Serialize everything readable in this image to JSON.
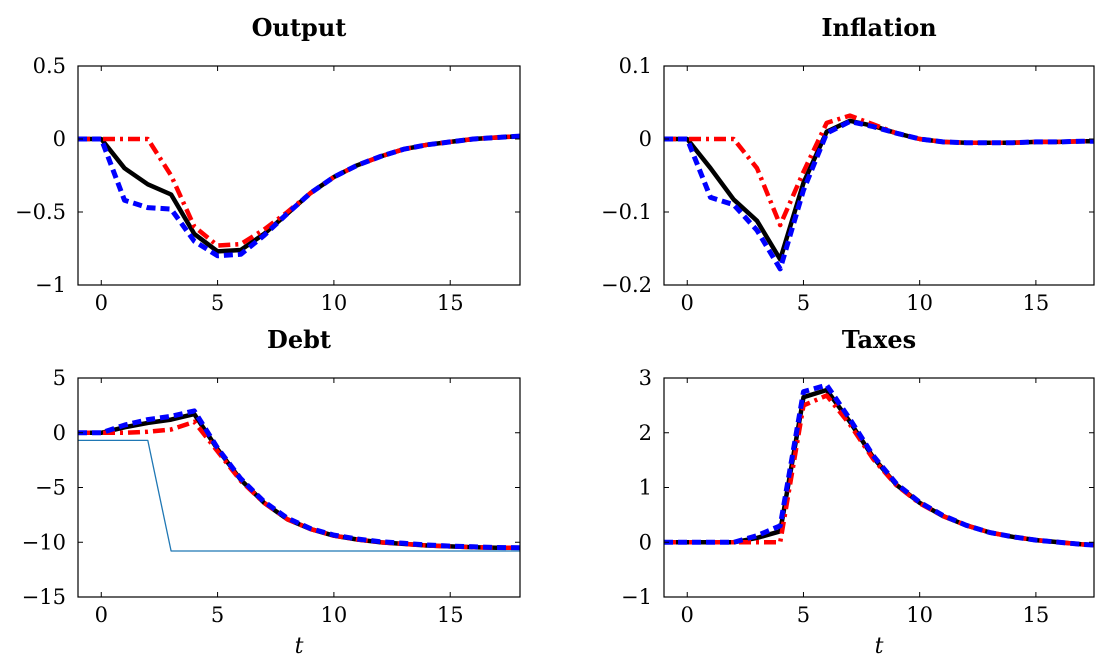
{
  "chart_data": [
    {
      "type": "line",
      "title": "Output",
      "xlabel": "",
      "xlim": [
        -1,
        18
      ],
      "ylim": [
        -1,
        0.5
      ],
      "xticks": [
        0,
        5,
        10,
        15
      ],
      "xtick_labels": [
        "0",
        "5",
        "10",
        "15"
      ],
      "yticks": [
        0.5,
        0,
        -0.5,
        -1
      ],
      "ytick_labels": [
        "0.5",
        "0",
        "−0.5",
        "−1"
      ],
      "series": [
        {
          "color": "#000000",
          "style": "solid-thick",
          "x": [
            -1,
            0,
            1,
            2,
            3,
            4,
            5,
            6,
            7,
            8,
            9,
            10,
            11,
            12,
            13,
            14,
            15,
            16,
            17,
            18
          ],
          "y": [
            0,
            0,
            -0.2,
            -0.31,
            -0.38,
            -0.65,
            -0.77,
            -0.76,
            -0.65,
            -0.51,
            -0.37,
            -0.26,
            -0.18,
            -0.12,
            -0.07,
            -0.04,
            -0.02,
            0,
            0.01,
            0.02
          ]
        },
        {
          "color": "#ff0000",
          "style": "dash-dot",
          "x": [
            -1,
            0,
            1,
            2,
            3,
            4,
            5,
            6,
            7,
            8,
            9,
            10,
            11,
            12,
            13,
            14,
            15,
            16,
            17,
            18
          ],
          "y": [
            0,
            0,
            0,
            0,
            -0.25,
            -0.6,
            -0.73,
            -0.72,
            -0.62,
            -0.5,
            -0.37,
            -0.26,
            -0.18,
            -0.12,
            -0.07,
            -0.04,
            -0.02,
            0,
            0.01,
            0.02
          ]
        },
        {
          "color": "#0000ff",
          "style": "dashed",
          "x": [
            -1,
            0,
            1,
            2,
            3,
            4,
            5,
            6,
            7,
            8,
            9,
            10,
            11,
            12,
            13,
            14,
            15,
            16,
            17,
            18
          ],
          "y": [
            0,
            0,
            -0.42,
            -0.47,
            -0.48,
            -0.7,
            -0.8,
            -0.79,
            -0.66,
            -0.51,
            -0.37,
            -0.26,
            -0.18,
            -0.12,
            -0.07,
            -0.04,
            -0.02,
            0,
            0.01,
            0.02
          ]
        }
      ]
    },
    {
      "type": "line",
      "title": "Inflation",
      "xlabel": "",
      "xlim": [
        -1,
        17.5
      ],
      "ylim": [
        -0.2,
        0.1
      ],
      "xticks": [
        0,
        5,
        10,
        15
      ],
      "xtick_labels": [
        "0",
        "5",
        "10",
        "15"
      ],
      "yticks": [
        0.1,
        0,
        -0.1,
        -0.2
      ],
      "ytick_labels": [
        "0.1",
        "0",
        "−0.1",
        "−0.2"
      ],
      "series": [
        {
          "color": "#000000",
          "style": "solid-thick",
          "x": [
            -1,
            0,
            1,
            2,
            3,
            4,
            5,
            6,
            7,
            8,
            9,
            10,
            11,
            12,
            13,
            14,
            15,
            16,
            17,
            17.5
          ],
          "y": [
            0,
            0,
            -0.04,
            -0.083,
            -0.112,
            -0.165,
            -0.06,
            0.01,
            0.025,
            0.018,
            0.008,
            0,
            -0.004,
            -0.005,
            -0.005,
            -0.005,
            -0.004,
            -0.004,
            -0.003,
            -0.003
          ]
        },
        {
          "color": "#ff0000",
          "style": "dash-dot",
          "x": [
            -1,
            0,
            1,
            2,
            3,
            4,
            5,
            6,
            7,
            8,
            9,
            10,
            11,
            12,
            13,
            14,
            15,
            16,
            17,
            17.5
          ],
          "y": [
            0,
            0,
            0,
            0,
            -0.04,
            -0.118,
            -0.045,
            0.022,
            0.032,
            0.02,
            0.008,
            0,
            -0.004,
            -0.005,
            -0.005,
            -0.005,
            -0.004,
            -0.004,
            -0.003,
            -0.003
          ]
        },
        {
          "color": "#0000ff",
          "style": "dashed",
          "x": [
            -1,
            0,
            1,
            2,
            3,
            4,
            5,
            6,
            7,
            8,
            9,
            10,
            11,
            12,
            13,
            14,
            15,
            16,
            17,
            17.5
          ],
          "y": [
            0,
            0,
            -0.08,
            -0.09,
            -0.125,
            -0.178,
            -0.07,
            0.008,
            0.024,
            0.017,
            0.008,
            0,
            -0.004,
            -0.005,
            -0.005,
            -0.005,
            -0.004,
            -0.004,
            -0.003,
            -0.003
          ]
        }
      ]
    },
    {
      "type": "line",
      "title": "Debt",
      "xlabel": "t",
      "xlim": [
        -1,
        18
      ],
      "ylim": [
        -15,
        5
      ],
      "xticks": [
        0,
        5,
        10,
        15
      ],
      "xtick_labels": [
        "0",
        "5",
        "10",
        "15"
      ],
      "yticks": [
        5,
        0,
        -5,
        -10,
        -15
      ],
      "ytick_labels": [
        "5",
        "0",
        "−5",
        "−10",
        "−15"
      ],
      "series": [
        {
          "color": "#000000",
          "style": "solid-thick",
          "x": [
            -1,
            0,
            1,
            2,
            3,
            4,
            5,
            6,
            7,
            8,
            9,
            10,
            11,
            12,
            13,
            14,
            15,
            16,
            17,
            18
          ],
          "y": [
            0,
            0,
            0.5,
            0.9,
            1.2,
            1.7,
            -1.5,
            -4.3,
            -6.4,
            -7.9,
            -8.8,
            -9.4,
            -9.75,
            -10.0,
            -10.15,
            -10.3,
            -10.38,
            -10.45,
            -10.5,
            -10.5
          ]
        },
        {
          "color": "#ff0000",
          "style": "dash-dot",
          "x": [
            -1,
            0,
            1,
            2,
            3,
            4,
            5,
            6,
            7,
            8,
            9,
            10,
            11,
            12,
            13,
            14,
            15,
            16,
            17,
            18
          ],
          "y": [
            0,
            0,
            0,
            0.1,
            0.3,
            1.0,
            -1.7,
            -4.4,
            -6.4,
            -7.9,
            -8.8,
            -9.4,
            -9.75,
            -10.0,
            -10.15,
            -10.3,
            -10.38,
            -10.45,
            -10.5,
            -10.5
          ]
        },
        {
          "color": "#0000ff",
          "style": "dashed",
          "x": [
            -1,
            0,
            1,
            2,
            3,
            4,
            5,
            6,
            7,
            8,
            9,
            10,
            11,
            12,
            13,
            14,
            15,
            16,
            17,
            18
          ],
          "y": [
            0,
            0,
            0.7,
            1.2,
            1.5,
            2.0,
            -1.4,
            -4.2,
            -6.3,
            -7.8,
            -8.75,
            -9.35,
            -9.7,
            -9.95,
            -10.1,
            -10.25,
            -10.35,
            -10.42,
            -10.48,
            -10.5
          ]
        },
        {
          "color": "#1f77b4",
          "style": "thin",
          "x": [
            -1,
            2,
            3,
            18
          ],
          "y": [
            -0.7,
            -0.7,
            -10.8,
            -10.8
          ]
        }
      ]
    },
    {
      "type": "line",
      "title": "Taxes",
      "xlabel": "t",
      "xlim": [
        -1,
        17.5
      ],
      "ylim": [
        -1,
        3
      ],
      "xticks": [
        0,
        5,
        10,
        15
      ],
      "xtick_labels": [
        "0",
        "5",
        "10",
        "15"
      ],
      "yticks": [
        3,
        2,
        1,
        0,
        -1
      ],
      "ytick_labels": [
        "3",
        "2",
        "1",
        "0",
        "−1"
      ],
      "series": [
        {
          "color": "#000000",
          "style": "solid-thick",
          "x": [
            -1,
            0,
            1,
            2,
            3,
            4,
            5,
            6,
            7,
            8,
            9,
            10,
            11,
            12,
            13,
            14,
            15,
            16,
            17,
            17.5
          ],
          "y": [
            0,
            0,
            0,
            0,
            0.08,
            0.2,
            2.65,
            2.78,
            2.2,
            1.55,
            1.05,
            0.72,
            0.48,
            0.31,
            0.18,
            0.1,
            0.04,
            0.0,
            -0.04,
            -0.05
          ]
        },
        {
          "color": "#ff0000",
          "style": "dash-dot",
          "x": [
            -1,
            0,
            1,
            2,
            3,
            4,
            5,
            6,
            7,
            8,
            9,
            10,
            11,
            12,
            13,
            14,
            15,
            16,
            17,
            17.5
          ],
          "y": [
            0,
            0,
            0,
            0,
            0,
            0,
            2.5,
            2.68,
            2.15,
            1.52,
            1.04,
            0.71,
            0.48,
            0.31,
            0.18,
            0.1,
            0.04,
            0.0,
            -0.04,
            -0.05
          ]
        },
        {
          "color": "#0000ff",
          "style": "dashed",
          "x": [
            -1,
            0,
            1,
            2,
            3,
            4,
            5,
            6,
            7,
            8,
            9,
            10,
            11,
            12,
            13,
            14,
            15,
            16,
            17,
            17.5
          ],
          "y": [
            0,
            0,
            0,
            0,
            0.12,
            0.3,
            2.75,
            2.87,
            2.25,
            1.58,
            1.07,
            0.73,
            0.49,
            0.31,
            0.18,
            0.1,
            0.04,
            0.0,
            -0.04,
            -0.05
          ]
        }
      ]
    }
  ]
}
